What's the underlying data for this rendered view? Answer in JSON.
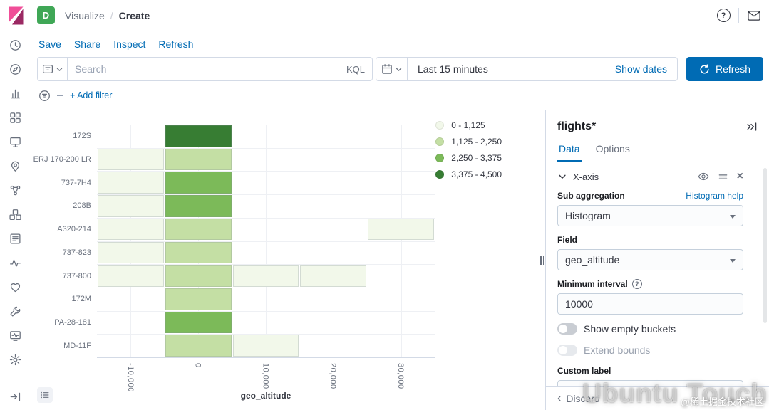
{
  "header": {
    "space_badge": "D",
    "breadcrumb": {
      "parent": "Visualize",
      "separator": "/",
      "current": "Create"
    }
  },
  "sidebar": {
    "items": [
      {
        "name": "recently-viewed"
      },
      {
        "name": "discover"
      },
      {
        "name": "visualize"
      },
      {
        "name": "dashboard"
      },
      {
        "name": "canvas"
      },
      {
        "name": "maps"
      },
      {
        "name": "machine-learning"
      },
      {
        "name": "infrastructure"
      },
      {
        "name": "logs"
      },
      {
        "name": "apm"
      },
      {
        "name": "uptime"
      },
      {
        "name": "dev-tools"
      },
      {
        "name": "monitoring"
      },
      {
        "name": "management"
      }
    ],
    "collapse": {
      "name": "collapse-menu"
    }
  },
  "toolbar": {
    "links": [
      "Save",
      "Share",
      "Inspect",
      "Refresh"
    ]
  },
  "query_bar": {
    "search_placeholder": "Search",
    "kql_label": "KQL",
    "time_value": "Last 15 minutes",
    "show_dates_label": "Show dates",
    "refresh_button_label": "Refresh"
  },
  "filter_bar": {
    "add_filter_label": "+ Add filter"
  },
  "chart_data": {
    "type": "heatmap",
    "orientation": "horizontal",
    "title": "",
    "xlabel": "geo_altitude",
    "ylabel": "",
    "grid": true,
    "legend_position": "top-right",
    "x_min": -15000,
    "x_max": 35000,
    "bucket_interval": 10000,
    "x_ticks": [
      {
        "value": -10000,
        "label": "-10,000"
      },
      {
        "value": 0,
        "label": "0"
      },
      {
        "value": 10000,
        "label": "10,000"
      },
      {
        "value": 20000,
        "label": "20,000"
      },
      {
        "value": 30000,
        "label": "30,000"
      }
    ],
    "categories": [
      "172S",
      "ERJ 170-200 LR",
      "737-7H4",
      "208B",
      "A320-214",
      "737-823",
      "737-800",
      "172M",
      "PA-28-181",
      "MD-11F"
    ],
    "legend": [
      {
        "label": "0 - 1,125",
        "color": "#F2F8EA"
      },
      {
        "label": "1,125 - 2,250",
        "color": "#C4DFA4"
      },
      {
        "label": "2,250 - 3,375",
        "color": "#7CBA59"
      },
      {
        "label": "3,375 - 4,500",
        "color": "#377D33"
      }
    ],
    "cells": [
      {
        "category": "172S",
        "bucket": 0,
        "band": 3
      },
      {
        "category": "ERJ 170-200 LR",
        "bucket": -10000,
        "band": 0
      },
      {
        "category": "ERJ 170-200 LR",
        "bucket": 0,
        "band": 1
      },
      {
        "category": "737-7H4",
        "bucket": -10000,
        "band": 0
      },
      {
        "category": "737-7H4",
        "bucket": 0,
        "band": 2
      },
      {
        "category": "208B",
        "bucket": -10000,
        "band": 0
      },
      {
        "category": "208B",
        "bucket": 0,
        "band": 2
      },
      {
        "category": "A320-214",
        "bucket": -10000,
        "band": 0
      },
      {
        "category": "A320-214",
        "bucket": 0,
        "band": 1
      },
      {
        "category": "A320-214",
        "bucket": 30000,
        "band": 0
      },
      {
        "category": "737-823",
        "bucket": -10000,
        "band": 0
      },
      {
        "category": "737-823",
        "bucket": 0,
        "band": 1
      },
      {
        "category": "737-800",
        "bucket": -10000,
        "band": 0
      },
      {
        "category": "737-800",
        "bucket": 0,
        "band": 1
      },
      {
        "category": "737-800",
        "bucket": 10000,
        "band": 0
      },
      {
        "category": "737-800",
        "bucket": 20000,
        "band": 0
      },
      {
        "category": "172M",
        "bucket": 0,
        "band": 1
      },
      {
        "category": "PA-28-181",
        "bucket": 0,
        "band": 2
      },
      {
        "category": "MD-11F",
        "bucket": 0,
        "band": 1
      },
      {
        "category": "MD-11F",
        "bucket": 10000,
        "band": 0
      }
    ]
  },
  "panel": {
    "index_pattern": "flights*",
    "tabs": [
      {
        "label": "Data",
        "active": true
      },
      {
        "label": "Options",
        "active": false
      }
    ],
    "x_axis_section": {
      "title": "X-axis",
      "sub_aggregation_label": "Sub aggregation",
      "help_link_label": "Histogram help",
      "aggregation_value": "Histogram",
      "field_label": "Field",
      "field_value": "geo_altitude",
      "minimum_interval_label": "Minimum interval",
      "minimum_interval_value": "10000",
      "show_empty_buckets_label": "Show empty buckets",
      "extend_bounds_label": "Extend bounds",
      "custom_label_label": "Custom label"
    },
    "footer": {
      "discard_label": "Discard"
    }
  },
  "watermark": {
    "title": "Ubuntu Touch",
    "credit": "@稀土掘金技术社区"
  },
  "colors": {
    "primary": "#006BB4",
    "remove_accent": "#BD271E",
    "space_badge_bg": "#3FA756",
    "grid_line": "#EEF0F4",
    "border": "#D3DAE6"
  }
}
